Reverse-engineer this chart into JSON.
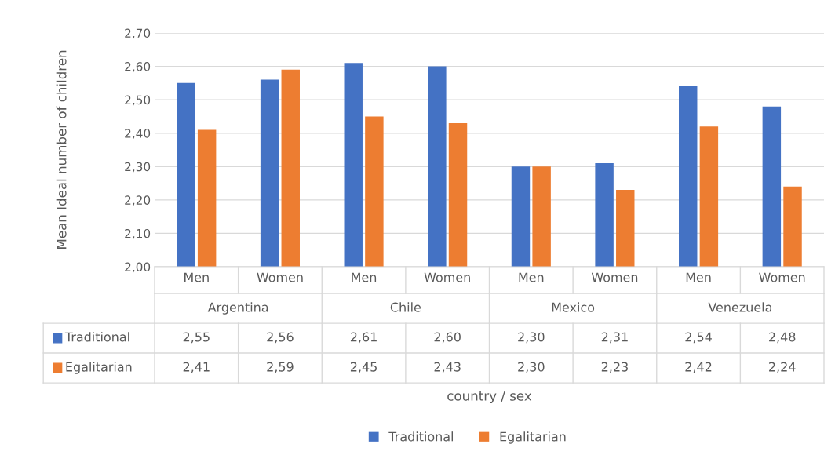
{
  "chart_data": {
    "type": "bar",
    "ylabel": "Mean Ideal number of children",
    "categories": [
      "Men",
      "Women",
      "Men",
      "Women",
      "Men",
      "Women",
      "Men",
      "Women"
    ],
    "annotations": [
      "country / sex",
      "Argentina",
      "Chile",
      "Mexico",
      "Venezuela"
    ],
    "series": [
      {
        "name": "Traditional",
        "color": "#4472c4",
        "values": [
          2.55,
          2.56,
          2.61,
          2.6,
          2.3,
          2.31,
          2.54,
          2.48
        ],
        "value_labels": [
          "2,55",
          "2,56",
          "2,61",
          "2,60",
          "2,30",
          "2,31",
          "2,54",
          "2,48"
        ]
      },
      {
        "name": "Egalitarian",
        "color": "#ed7d31",
        "values": [
          2.41,
          2.59,
          2.45,
          2.43,
          2.3,
          2.23,
          2.42,
          2.24
        ],
        "value_labels": [
          "2,41",
          "2,59",
          "2,45",
          "2,43",
          "2,30",
          "2,23",
          "2,42",
          "2,24"
        ]
      }
    ],
    "ylim": [
      2.0,
      2.7
    ],
    "yticks": [
      {
        "value": 2.0,
        "label": "2,00"
      },
      {
        "value": 2.1,
        "label": "2,10"
      },
      {
        "value": 2.2,
        "label": "2,20"
      },
      {
        "value": 2.3,
        "label": "2,30"
      },
      {
        "value": 2.4,
        "label": "2,40"
      },
      {
        "value": 2.5,
        "label": "2,50"
      },
      {
        "value": 2.6,
        "label": "2,60"
      },
      {
        "value": 2.7,
        "label": "2,70"
      }
    ],
    "grid": "y",
    "legend": "bottom"
  }
}
